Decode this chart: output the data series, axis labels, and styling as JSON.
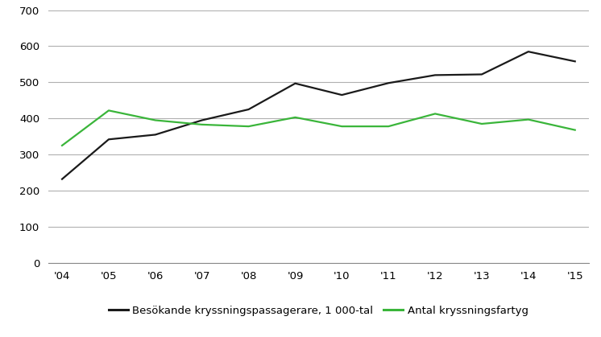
{
  "years": [
    "'04",
    "'05",
    "'06",
    "'07",
    "'08",
    "'09",
    "'10",
    "'11",
    "'12",
    "'13",
    "'14",
    "'15"
  ],
  "passengers": [
    232,
    342,
    355,
    395,
    425,
    497,
    465,
    498,
    520,
    522,
    585,
    558
  ],
  "ships": [
    325,
    422,
    395,
    383,
    378,
    403,
    378,
    378,
    413,
    385,
    397,
    368
  ],
  "passenger_color": "#1a1a1a",
  "ship_color": "#3ab53a",
  "ylim": [
    0,
    700
  ],
  "yticks": [
    0,
    100,
    200,
    300,
    400,
    500,
    600,
    700
  ],
  "legend_passenger": "Besökande kryssningspassagerare, 1 000-tal",
  "legend_ship": "Antal kryssningsfartyg",
  "bg_color": "#ffffff",
  "grid_color": "#b0b0b0",
  "linewidth": 1.6,
  "tick_fontsize": 9.5,
  "legend_fontsize": 9.5
}
